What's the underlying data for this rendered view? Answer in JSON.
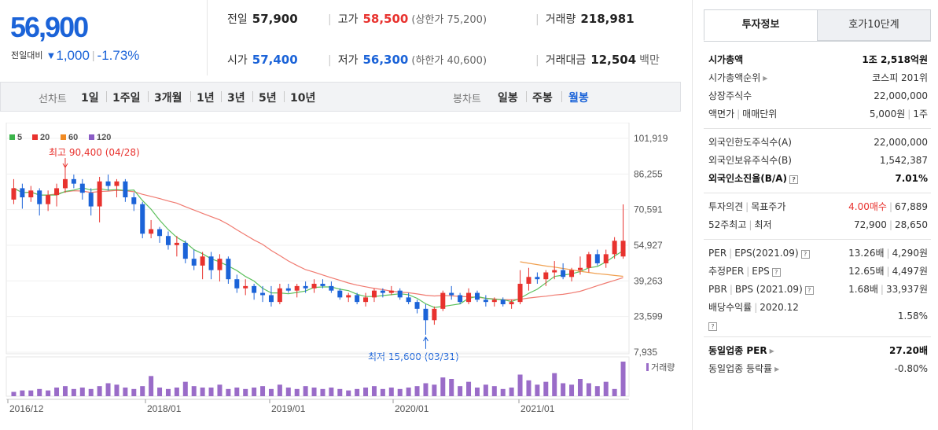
{
  "price": {
    "current": "56,900",
    "change_label": "전일대비",
    "change_arrow": "▼",
    "change": "1,000",
    "change_rate": "-1.73%",
    "color": "#1b63d8"
  },
  "summary": {
    "prev_close_label": "전일",
    "prev_close": "57,900",
    "high_label": "고가",
    "high": "58,500",
    "upper_limit": "(상한가 75,200)",
    "volume_label": "거래량",
    "volume": "218,981",
    "open_label": "시가",
    "open": "57,400",
    "low_label": "저가",
    "low": "56,300",
    "lower_limit": "(하한가 40,600)",
    "amount_label": "거래대금",
    "amount": "12,504",
    "amount_unit": "백만"
  },
  "period_bar": {
    "line_chart_label": "선차트",
    "line_periods": [
      "1일",
      "1주일",
      "3개월",
      "1년",
      "3년",
      "5년",
      "10년"
    ],
    "candle_label": "봉차트",
    "candle_periods": [
      "일봉",
      "주봉",
      "월봉"
    ],
    "active": "월봉"
  },
  "tabs": {
    "invest": "투자정보",
    "orderbook": "호가10단계"
  },
  "info": {
    "market_cap_label": "시가총액",
    "market_cap": "1조 2,518억원",
    "market_cap_rank_label": "시가총액순위",
    "market_cap_rank": "코스피 201위",
    "listed_shares_label": "상장주식수",
    "listed_shares": "22,000,000",
    "face_value_label": "액면가",
    "trade_unit_label": "매매단위",
    "face_value": "5,000원",
    "trade_unit": "1주",
    "foreign_limit_label": "외국인한도주식수(A)",
    "foreign_limit": "22,000,000",
    "foreign_hold_label": "외국인보유주식수(B)",
    "foreign_hold": "1,542,387",
    "foreign_rate_label": "외국인소진율(B/A)",
    "foreign_rate": "7.01%",
    "opinion_label": "투자의견",
    "target_label": "목표주가",
    "opinion": "4.00매수",
    "target": "67,889",
    "week52_high_label": "52주최고",
    "week52_low_label": "최저",
    "week52_high": "72,900",
    "week52_low": "28,650",
    "per_label": "PER",
    "eps_label": "EPS(2021.09)",
    "per": "13.26배",
    "eps": "4,290원",
    "est_per_label": "추정PER",
    "est_eps_label": "EPS",
    "est_per": "12.65배",
    "est_eps": "4,497원",
    "pbr_label": "PBR",
    "bps_label": "BPS (2021.09)",
    "pbr": "1.68배",
    "bps": "33,937원",
    "dividend_label": "배당수익률",
    "dividend_date": "2020.12",
    "dividend": "1.58%",
    "industry_per_label": "동일업종 PER",
    "industry_per": "27.20배",
    "industry_change_label": "동일업종 등락률",
    "industry_change": "-0.80%"
  },
  "chart_data": {
    "type": "candlestick",
    "legend": [
      {
        "name": "5",
        "color": "#3cb44b"
      },
      {
        "name": "20",
        "color": "#e8322e"
      },
      {
        "name": "60",
        "color": "#f08a24"
      },
      {
        "name": "120",
        "color": "#8a5cc5"
      }
    ],
    "y_ticks": [
      "101,919",
      "86,255",
      "70,591",
      "54,927",
      "39,263",
      "23,599",
      "7,935"
    ],
    "x_ticks": [
      "2016/12",
      "2018/01",
      "2019/01",
      "2020/01",
      "2021/01"
    ],
    "annotation_high": "최고 90,400 (04/28)",
    "annotation_low": "최저 15,600 (03/31)",
    "volume_label": "거래량",
    "candles": [
      [
        75000,
        84000,
        73000,
        80000
      ],
      [
        80000,
        82000,
        71000,
        76000
      ],
      [
        76000,
        81000,
        74000,
        79000
      ],
      [
        79000,
        80000,
        68000,
        73000
      ],
      [
        73000,
        79000,
        70000,
        77000
      ],
      [
        77000,
        82000,
        72000,
        80000
      ],
      [
        80000,
        90400,
        78000,
        84000
      ],
      [
        84000,
        86000,
        80000,
        82000
      ],
      [
        82000,
        84000,
        75000,
        78000
      ],
      [
        78000,
        80000,
        68000,
        72000
      ],
      [
        72000,
        85000,
        65000,
        83000
      ],
      [
        83000,
        86000,
        79000,
        81000
      ],
      [
        81000,
        84000,
        76000,
        83000
      ],
      [
        83000,
        84000,
        74000,
        76000
      ],
      [
        76000,
        78000,
        70000,
        73000
      ],
      [
        73000,
        74000,
        58000,
        60000
      ],
      [
        60000,
        66000,
        58000,
        62000
      ],
      [
        62000,
        63000,
        56000,
        59000
      ],
      [
        59000,
        61000,
        53000,
        55000
      ],
      [
        55000,
        59000,
        50000,
        56000
      ],
      [
        56000,
        57000,
        47000,
        49000
      ],
      [
        49000,
        53000,
        44000,
        46000
      ],
      [
        46000,
        52000,
        40000,
        50000
      ],
      [
        50000,
        52000,
        40000,
        44000
      ],
      [
        44000,
        51000,
        39000,
        49000
      ],
      [
        49000,
        50000,
        38000,
        40000
      ],
      [
        40000,
        42000,
        34000,
        36000
      ],
      [
        36000,
        40000,
        33000,
        37000
      ],
      [
        37000,
        38000,
        31000,
        34000
      ],
      [
        34000,
        37000,
        30000,
        33000
      ],
      [
        33000,
        37000,
        28000,
        30000
      ],
      [
        30000,
        38000,
        29000,
        36000
      ],
      [
        36000,
        38000,
        34000,
        35000
      ],
      [
        35000,
        38000,
        32000,
        37000
      ],
      [
        37000,
        39000,
        34000,
        36000
      ],
      [
        36000,
        40000,
        34000,
        38000
      ],
      [
        38000,
        40000,
        36000,
        37000
      ],
      [
        37000,
        39000,
        34000,
        35000
      ],
      [
        35000,
        36000,
        31000,
        32000
      ],
      [
        32000,
        34000,
        30000,
        33000
      ],
      [
        33000,
        34000,
        29000,
        30000
      ],
      [
        30000,
        34000,
        28000,
        32000
      ],
      [
        32000,
        36000,
        30000,
        35000
      ],
      [
        35000,
        36000,
        32000,
        34000
      ],
      [
        34000,
        37000,
        33000,
        35000
      ],
      [
        35000,
        36000,
        31000,
        32000
      ],
      [
        32000,
        34000,
        29000,
        30000
      ],
      [
        30000,
        31000,
        25000,
        27000
      ],
      [
        27000,
        29000,
        15600,
        22000
      ],
      [
        22000,
        28000,
        20000,
        27000
      ],
      [
        27000,
        35000,
        26000,
        34000
      ],
      [
        34000,
        37000,
        31000,
        33000
      ],
      [
        33000,
        34000,
        29000,
        30000
      ],
      [
        30000,
        36000,
        29000,
        34000
      ],
      [
        34000,
        35000,
        30000,
        31000
      ],
      [
        31000,
        33000,
        28000,
        30000
      ],
      [
        30000,
        32000,
        28000,
        31000
      ],
      [
        31000,
        32000,
        28000,
        29000
      ],
      [
        29000,
        31000,
        27000,
        30000
      ],
      [
        30000,
        44000,
        29000,
        38000
      ],
      [
        38000,
        45000,
        35000,
        41000
      ],
      [
        41000,
        43000,
        38000,
        40000
      ],
      [
        40000,
        44000,
        37000,
        43000
      ],
      [
        43000,
        48000,
        40000,
        44000
      ],
      [
        44000,
        47000,
        40000,
        41000
      ],
      [
        41000,
        45000,
        39000,
        44000
      ],
      [
        44000,
        50000,
        42000,
        45000
      ],
      [
        45000,
        52000,
        43000,
        51000
      ],
      [
        51000,
        53000,
        46000,
        47000
      ],
      [
        47000,
        53000,
        45000,
        51000
      ],
      [
        51000,
        58500,
        49000,
        56900
      ],
      [
        50000,
        72900,
        49000,
        56900
      ]
    ],
    "volumes": [
      3,
      4,
      4,
      5,
      4,
      6,
      7,
      5,
      6,
      5,
      7,
      9,
      8,
      6,
      5,
      7,
      14,
      6,
      5,
      6,
      10,
      7,
      6,
      6,
      8,
      5,
      6,
      5,
      6,
      7,
      5,
      8,
      6,
      5,
      7,
      6,
      5,
      6,
      5,
      4,
      5,
      6,
      7,
      5,
      6,
      5,
      6,
      7,
      9,
      8,
      13,
      12,
      7,
      10,
      6,
      8,
      7,
      5,
      6,
      15,
      11,
      8,
      10,
      16,
      9,
      8,
      12,
      9,
      7,
      10,
      5,
      24
    ]
  }
}
